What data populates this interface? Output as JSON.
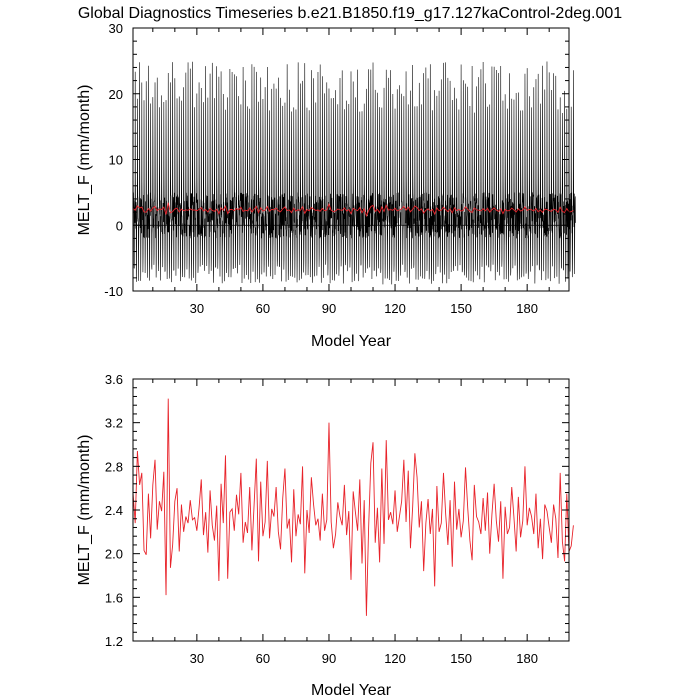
{
  "title": "Global Diagnostics Timeseries b.e21.B1850.f19_g17.127kaControl-2deg.001",
  "colors": {
    "monthly": "#000000",
    "annual": "#e8232a",
    "axis": "#000000"
  },
  "chart_data": [
    {
      "id": "top",
      "type": "line",
      "xlabel": "Model Year",
      "ylabel": "MELT_F (mm/month)",
      "xlim": [
        1,
        199
      ],
      "ylim": [
        -10,
        30
      ],
      "xticks": [
        30,
        60,
        90,
        120,
        150,
        180
      ],
      "yticks": [
        -10,
        0,
        10,
        20,
        30
      ],
      "series": [
        {
          "name": "monthly global mean",
          "color": "#000000",
          "description_range": "approx -9 to 25 mm/month, seasonal cycle"
        },
        {
          "name": "annual global mean",
          "color": "#e8232a",
          "values_ref": "bottom"
        }
      ]
    },
    {
      "id": "bottom",
      "type": "line",
      "xlabel": "Model Year",
      "ylabel": "MELT_F (mm/month)",
      "xlim": [
        1,
        199
      ],
      "ylim": [
        1.2,
        3.6
      ],
      "xticks": [
        30,
        60,
        90,
        120,
        150,
        180
      ],
      "yticks": [
        1.2,
        1.6,
        2.0,
        2.4,
        2.8,
        3.2,
        3.6
      ],
      "series": [
        {
          "name": "annual global mean",
          "color": "#e8232a",
          "x_start": 1,
          "values": [
            2.56,
            2.28,
            2.94,
            2.63,
            2.74,
            2.03,
            1.99,
            2.55,
            2.14,
            2.63,
            2.86,
            2.22,
            2.48,
            2.39,
            2.75,
            1.62,
            3.42,
            1.87,
            2.08,
            2.48,
            2.6,
            2.02,
            2.45,
            2.2,
            2.34,
            2.28,
            2.49,
            2.31,
            2.33,
            2.21,
            2.42,
            2.68,
            2.17,
            2.38,
            2.01,
            2.58,
            2.26,
            2.12,
            2.44,
            1.75,
            2.64,
            2.28,
            2.9,
            1.77,
            2.38,
            2.41,
            2.21,
            2.54,
            2.36,
            2.74,
            2.1,
            2.29,
            2.19,
            2.61,
            2.03,
            2.45,
            2.87,
            1.93,
            2.66,
            2.16,
            2.29,
            2.85,
            2.14,
            2.41,
            2.34,
            2.61,
            2.2,
            2.04,
            2.51,
            2.78,
            2.23,
            2.32,
            1.92,
            2.59,
            2.16,
            2.36,
            2.27,
            2.8,
            1.82,
            2.4,
            2.19,
            2.7,
            2.45,
            2.26,
            2.32,
            2.12,
            2.55,
            2.21,
            2.31,
            3.2,
            2.29,
            2.05,
            2.18,
            2.47,
            2.34,
            2.26,
            2.63,
            2.17,
            2.39,
            1.76,
            2.57,
            2.38,
            2.21,
            2.68,
            1.91,
            2.49,
            1.43,
            2.24,
            2.83,
            3.02,
            2.1,
            2.42,
            1.92,
            2.78,
            2.09,
            3.04,
            2.31,
            2.38,
            2.27,
            2.58,
            2.2,
            2.34,
            2.48,
            2.86,
            2.29,
            2.76,
            2.05,
            2.43,
            2.92,
            2.7,
            2.24,
            2.48,
            1.84,
            2.28,
            2.5,
            2.18,
            2.41,
            1.7,
            2.62,
            2.2,
            2.28,
            2.74,
            2.36,
            2.08,
            2.49,
            1.88,
            2.66,
            2.22,
            2.41,
            2.15,
            2.3,
            2.79,
            2.42,
            2.12,
            1.94,
            2.63,
            2.34,
            2.29,
            2.18,
            2.51,
            2.21,
            2.56,
            2.0,
            2.36,
            2.64,
            2.3,
            2.11,
            2.48,
            1.77,
            2.43,
            2.18,
            2.24,
            2.61,
            2.33,
            2.02,
            2.52,
            2.15,
            2.3,
            2.8,
            2.26,
            2.42,
            2.34,
            2.18,
            2.55,
            2.05,
            2.32,
            1.95,
            2.45,
            2.39,
            2.24,
            2.1,
            2.45,
            2.32,
            1.96,
            2.74,
            2.11,
            1.93,
            2.55,
            2.02,
            2.07,
            2.26
          ]
        }
      ]
    }
  ]
}
